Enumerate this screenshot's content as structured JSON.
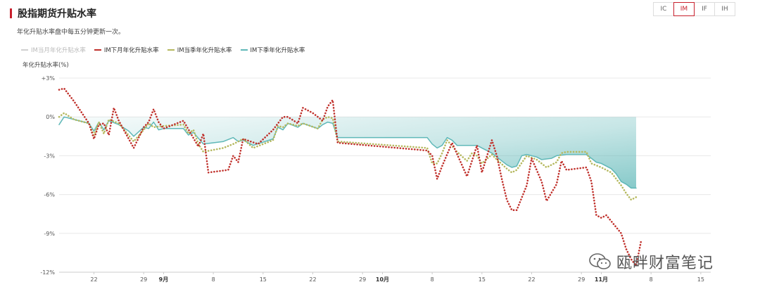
{
  "header": {
    "title": "股指期货升贴水率",
    "subtitle": "年化升贴水率盘中每五分钟更新一次。"
  },
  "tabs": [
    {
      "label": "IC",
      "active": false
    },
    {
      "label": "IM",
      "active": true
    },
    {
      "label": "IF",
      "active": false
    },
    {
      "label": "IH",
      "active": false
    }
  ],
  "watermark": {
    "text": "瓯畔财富笔记",
    "icon": "wechat-icon"
  },
  "chart_data": {
    "type": "line",
    "ylabel": "年化升贴水率(%)",
    "ylim": [
      -12,
      3
    ],
    "y_ticks": [
      "+3%",
      "0%",
      "-3%",
      "-6%",
      "-9%",
      "-12%"
    ],
    "y_tick_values": [
      3,
      0,
      -3,
      -6,
      -9,
      -12
    ],
    "grid": true,
    "legend_position": "top-left",
    "x_ticks": [
      {
        "label": "22",
        "bold": false,
        "index": 7
      },
      {
        "label": "29",
        "bold": false,
        "index": 17
      },
      {
        "label": "9月",
        "bold": true,
        "index": 21
      },
      {
        "label": "8",
        "bold": false,
        "index": 31
      },
      {
        "label": "15",
        "bold": false,
        "index": 41
      },
      {
        "label": "22",
        "bold": false,
        "index": 51
      },
      {
        "label": "29",
        "bold": false,
        "index": 61
      },
      {
        "label": "10月",
        "bold": true,
        "index": 65
      },
      {
        "label": "8",
        "bold": false,
        "index": 75
      },
      {
        "label": "15",
        "bold": false,
        "index": 85
      },
      {
        "label": "22",
        "bold": false,
        "index": 95
      },
      {
        "label": "29",
        "bold": false,
        "index": 105
      },
      {
        "label": "11月",
        "bold": true,
        "index": 109
      },
      {
        "label": "8",
        "bold": false,
        "index": 119
      },
      {
        "label": "15",
        "bold": false,
        "index": 129
      }
    ],
    "x_count": 132,
    "series": [
      {
        "name": "IM当月年化升贴水率",
        "color": "#c8c8c8",
        "hidden": true,
        "values": []
      },
      {
        "name": "IM下月年化升贴水率",
        "color": "#c0302b",
        "style": "dotted",
        "points": [
          [
            0,
            2.1
          ],
          [
            1,
            2.2
          ],
          [
            3,
            1.2
          ],
          [
            6,
            -0.5
          ],
          [
            7,
            -1.7
          ],
          [
            8,
            -0.6
          ],
          [
            9,
            -0.5
          ],
          [
            10,
            -1.4
          ],
          [
            11,
            0.7
          ],
          [
            12,
            -0.3
          ],
          [
            15,
            -2.4
          ],
          [
            17,
            -0.8
          ],
          [
            18,
            -0.4
          ],
          [
            19,
            0.6
          ],
          [
            20,
            -0.4
          ],
          [
            21,
            -0.9
          ],
          [
            25,
            -0.3
          ],
          [
            28,
            -2.3
          ],
          [
            29,
            -1.3
          ],
          [
            30,
            -4.3
          ],
          [
            34,
            -4.1
          ],
          [
            35,
            -3.0
          ],
          [
            36,
            -3.5
          ],
          [
            37,
            -1.7
          ],
          [
            40,
            -2.1
          ],
          [
            43,
            -1.0
          ],
          [
            44,
            -0.5
          ],
          [
            45,
            0.0
          ],
          [
            46,
            0.0
          ],
          [
            48,
            -0.5
          ],
          [
            49,
            0.7
          ],
          [
            51,
            0.3
          ],
          [
            52,
            0.0
          ],
          [
            53,
            -0.3
          ],
          [
            54,
            0.8
          ],
          [
            55,
            1.3
          ],
          [
            56,
            -2.0
          ],
          [
            74,
            -2.6
          ],
          [
            75,
            -3.0
          ],
          [
            76,
            -4.8
          ],
          [
            77,
            -3.8
          ],
          [
            79,
            -2.0
          ],
          [
            82,
            -4.6
          ],
          [
            84,
            -2.2
          ],
          [
            85,
            -4.3
          ],
          [
            87,
            -1.8
          ],
          [
            88,
            -3.0
          ],
          [
            89,
            -4.8
          ],
          [
            90,
            -6.4
          ],
          [
            91,
            -7.2
          ],
          [
            92,
            -7.2
          ],
          [
            94,
            -5.3
          ],
          [
            95,
            -3.2
          ],
          [
            97,
            -5.0
          ],
          [
            98,
            -6.5
          ],
          [
            100,
            -5.2
          ],
          [
            101,
            -3.4
          ],
          [
            102,
            -4.1
          ],
          [
            106,
            -3.9
          ],
          [
            107,
            -5.0
          ],
          [
            108,
            -7.6
          ],
          [
            109,
            -7.8
          ],
          [
            110,
            -7.6
          ],
          [
            113,
            -9.0
          ],
          [
            114,
            -10.2
          ],
          [
            115,
            -11.0
          ],
          [
            116,
            -11.5
          ],
          [
            117,
            -9.6
          ]
        ]
      },
      {
        "name": "IM当季年化升贴水率",
        "color": "#b5b85e",
        "style": "dotted",
        "points": [
          [
            0,
            0.0
          ],
          [
            1,
            0.3
          ],
          [
            3,
            -0.2
          ],
          [
            6,
            -0.5
          ],
          [
            7,
            -1.4
          ],
          [
            8,
            -0.4
          ],
          [
            9,
            -1.3
          ],
          [
            10,
            -0.2
          ],
          [
            12,
            -0.5
          ],
          [
            15,
            -1.9
          ],
          [
            17,
            -1.0
          ],
          [
            18,
            -0.5
          ],
          [
            19,
            -0.8
          ],
          [
            21,
            -0.7
          ],
          [
            25,
            -0.6
          ],
          [
            26,
            -1.3
          ],
          [
            27,
            -1.0
          ],
          [
            28,
            -2.1
          ],
          [
            29,
            -2.7
          ],
          [
            33,
            -2.4
          ],
          [
            35,
            -2.1
          ],
          [
            36,
            -1.9
          ],
          [
            37,
            -1.7
          ],
          [
            39,
            -2.4
          ],
          [
            43,
            -1.8
          ],
          [
            44,
            -0.7
          ],
          [
            45,
            -0.8
          ],
          [
            46,
            -0.5
          ],
          [
            48,
            -0.7
          ],
          [
            49,
            -0.5
          ],
          [
            52,
            -0.9
          ],
          [
            53,
            -0.2
          ],
          [
            54,
            0.0
          ],
          [
            55,
            -0.1
          ],
          [
            56,
            -1.9
          ],
          [
            74,
            -2.4
          ],
          [
            75,
            -3.6
          ],
          [
            76,
            -3.6
          ],
          [
            77,
            -2.8
          ],
          [
            78,
            -1.8
          ],
          [
            80,
            -2.7
          ],
          [
            82,
            -3.4
          ],
          [
            83,
            -2.8
          ],
          [
            84,
            -3.0
          ],
          [
            85,
            -3.6
          ],
          [
            87,
            -2.9
          ],
          [
            88,
            -3.3
          ],
          [
            90,
            -4.0
          ],
          [
            91,
            -4.3
          ],
          [
            92,
            -4.1
          ],
          [
            94,
            -3.0
          ],
          [
            96,
            -3.3
          ],
          [
            98,
            -3.9
          ],
          [
            100,
            -3.5
          ],
          [
            101,
            -2.8
          ],
          [
            102,
            -2.7
          ],
          [
            106,
            -2.7
          ],
          [
            107,
            -3.6
          ],
          [
            109,
            -3.9
          ],
          [
            111,
            -4.3
          ],
          [
            112,
            -4.8
          ],
          [
            113,
            -5.3
          ],
          [
            114,
            -5.9
          ],
          [
            115,
            -6.4
          ],
          [
            116,
            -6.2
          ]
        ]
      },
      {
        "name": "IM下季年化升贴水率",
        "color": "#5fb8b8",
        "style": "solid",
        "points": [
          [
            0,
            -0.6
          ],
          [
            1,
            0.0
          ],
          [
            3,
            -0.2
          ],
          [
            6,
            -0.5
          ],
          [
            7,
            -1.1
          ],
          [
            8,
            -0.4
          ],
          [
            9,
            -1.0
          ],
          [
            10,
            -0.3
          ],
          [
            12,
            -0.6
          ],
          [
            14,
            -1.1
          ],
          [
            15,
            -1.5
          ],
          [
            17,
            -0.8
          ],
          [
            18,
            -0.9
          ],
          [
            19,
            -0.4
          ],
          [
            20,
            -1.0
          ],
          [
            21,
            -0.9
          ],
          [
            25,
            -0.9
          ],
          [
            26,
            -1.4
          ],
          [
            27,
            -1.2
          ],
          [
            29,
            -2.1
          ],
          [
            33,
            -1.9
          ],
          [
            35,
            -1.6
          ],
          [
            36,
            -1.9
          ],
          [
            37,
            -1.8
          ],
          [
            39,
            -2.2
          ],
          [
            43,
            -1.7
          ],
          [
            44,
            -0.8
          ],
          [
            45,
            -1.0
          ],
          [
            46,
            -0.5
          ],
          [
            48,
            -0.8
          ],
          [
            49,
            -0.5
          ],
          [
            52,
            -0.9
          ],
          [
            53,
            -0.6
          ],
          [
            54,
            -0.4
          ],
          [
            55,
            -0.5
          ],
          [
            56,
            -1.6
          ],
          [
            74,
            -1.6
          ],
          [
            75,
            -2.1
          ],
          [
            76,
            -2.4
          ],
          [
            77,
            -2.2
          ],
          [
            78,
            -1.6
          ],
          [
            79,
            -1.8
          ],
          [
            80,
            -2.2
          ],
          [
            84,
            -2.2
          ],
          [
            85,
            -2.4
          ],
          [
            87,
            -2.8
          ],
          [
            89,
            -3.4
          ],
          [
            90,
            -3.7
          ],
          [
            91,
            -3.9
          ],
          [
            92,
            -3.8
          ],
          [
            93,
            -3.0
          ],
          [
            94,
            -2.9
          ],
          [
            96,
            -3.1
          ],
          [
            97,
            -3.3
          ],
          [
            99,
            -3.2
          ],
          [
            100,
            -3.0
          ],
          [
            102,
            -2.9
          ],
          [
            106,
            -2.9
          ],
          [
            107,
            -3.2
          ],
          [
            108,
            -3.5
          ],
          [
            109,
            -3.6
          ],
          [
            111,
            -4.0
          ],
          [
            112,
            -4.4
          ],
          [
            113,
            -5.0
          ],
          [
            114,
            -5.2
          ],
          [
            115,
            -5.5
          ],
          [
            116,
            -5.5
          ]
        ]
      }
    ]
  }
}
